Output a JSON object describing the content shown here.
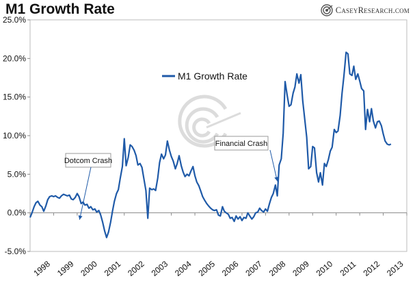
{
  "brand": {
    "name": "CaseyResearch.com",
    "icon": "target-swirl-icon"
  },
  "colors": {
    "series": "#1f5aa8",
    "axis": "#888888",
    "plot_border": "#bbbbbb",
    "annotation_border": "#999999",
    "watermark": "#d9d9d9"
  },
  "chart_data": {
    "type": "line",
    "title": "M1 Growth Rate",
    "xlabel": "",
    "ylabel": "",
    "xlim": [
      1998.0,
      2014.0
    ],
    "ylim": [
      -5,
      25
    ],
    "yticks": [
      -5,
      0,
      5,
      10,
      15,
      20,
      25
    ],
    "ytick_labels": [
      "-5.0%",
      "0.0%",
      "5.0%",
      "10.0%",
      "15.0%",
      "20.0%",
      "25.0%"
    ],
    "xtick_labels": [
      "1998",
      "1999",
      "2000",
      "2001",
      "2002",
      "2003",
      "2004",
      "2005",
      "2006",
      "2007",
      "2008",
      "2009",
      "2010",
      "2011",
      "2012",
      "2013"
    ],
    "grid": false,
    "legend": {
      "position": "upper-center",
      "entries": [
        "M1 Growth Rate"
      ]
    },
    "series": [
      {
        "name": "M1 Growth Rate",
        "points": [
          [
            1998.0,
            -0.6
          ],
          [
            1998.08,
            0.0
          ],
          [
            1998.17,
            0.8
          ],
          [
            1998.25,
            1.3
          ],
          [
            1998.33,
            1.5
          ],
          [
            1998.42,
            1.0
          ],
          [
            1998.5,
            0.8
          ],
          [
            1998.58,
            0.2
          ],
          [
            1998.67,
            0.9
          ],
          [
            1998.75,
            1.7
          ],
          [
            1998.83,
            2.1
          ],
          [
            1998.92,
            2.2
          ],
          [
            1999.0,
            2.1
          ],
          [
            1999.08,
            2.2
          ],
          [
            1999.17,
            2.0
          ],
          [
            1999.25,
            1.9
          ],
          [
            1999.33,
            2.2
          ],
          [
            1999.42,
            2.4
          ],
          [
            1999.5,
            2.3
          ],
          [
            1999.58,
            2.2
          ],
          [
            1999.67,
            2.3
          ],
          [
            1999.75,
            1.8
          ],
          [
            1999.83,
            1.7
          ],
          [
            1999.92,
            2.0
          ],
          [
            2000.0,
            2.5
          ],
          [
            2000.08,
            2.1
          ],
          [
            2000.17,
            1.2
          ],
          [
            2000.25,
            1.4
          ],
          [
            2000.33,
            1.0
          ],
          [
            2000.42,
            1.1
          ],
          [
            2000.5,
            0.6
          ],
          [
            2000.58,
            0.8
          ],
          [
            2000.67,
            0.4
          ],
          [
            2000.75,
            0.5
          ],
          [
            2000.83,
            0.1
          ],
          [
            2000.92,
            0.3
          ],
          [
            2001.0,
            -0.3
          ],
          [
            2001.08,
            -1.2
          ],
          [
            2001.17,
            -2.4
          ],
          [
            2001.25,
            -3.2
          ],
          [
            2001.33,
            -2.5
          ],
          [
            2001.42,
            -1.2
          ],
          [
            2001.5,
            0.2
          ],
          [
            2001.58,
            1.5
          ],
          [
            2001.67,
            2.5
          ],
          [
            2001.75,
            3.0
          ],
          [
            2001.83,
            4.5
          ],
          [
            2001.92,
            6.0
          ],
          [
            2002.0,
            9.6
          ],
          [
            2002.08,
            6.1
          ],
          [
            2002.17,
            7.2
          ],
          [
            2002.25,
            8.8
          ],
          [
            2002.33,
            8.6
          ],
          [
            2002.42,
            8.1
          ],
          [
            2002.5,
            7.4
          ],
          [
            2002.58,
            6.2
          ],
          [
            2002.67,
            6.4
          ],
          [
            2002.75,
            5.9
          ],
          [
            2002.83,
            4.5
          ],
          [
            2002.92,
            2.9
          ],
          [
            2003.0,
            -0.7
          ],
          [
            2003.08,
            3.2
          ],
          [
            2003.17,
            3.0
          ],
          [
            2003.25,
            3.1
          ],
          [
            2003.33,
            2.9
          ],
          [
            2003.42,
            4.5
          ],
          [
            2003.5,
            6.5
          ],
          [
            2003.58,
            7.6
          ],
          [
            2003.67,
            7.0
          ],
          [
            2003.75,
            7.5
          ],
          [
            2003.83,
            9.3
          ],
          [
            2003.92,
            8.1
          ],
          [
            2004.0,
            7.3
          ],
          [
            2004.08,
            6.7
          ],
          [
            2004.17,
            5.7
          ],
          [
            2004.25,
            6.4
          ],
          [
            2004.33,
            7.4
          ],
          [
            2004.42,
            6.1
          ],
          [
            2004.5,
            5.3
          ],
          [
            2004.58,
            4.7
          ],
          [
            2004.67,
            5.0
          ],
          [
            2004.75,
            4.8
          ],
          [
            2004.83,
            5.4
          ],
          [
            2004.92,
            6.0
          ],
          [
            2005.0,
            4.8
          ],
          [
            2005.08,
            4.0
          ],
          [
            2005.17,
            3.5
          ],
          [
            2005.25,
            2.8
          ],
          [
            2005.33,
            2.1
          ],
          [
            2005.42,
            1.6
          ],
          [
            2005.5,
            1.2
          ],
          [
            2005.58,
            0.9
          ],
          [
            2005.67,
            0.6
          ],
          [
            2005.75,
            0.4
          ],
          [
            2005.83,
            0.3
          ],
          [
            2005.92,
            0.4
          ],
          [
            2006.0,
            -0.3
          ],
          [
            2006.08,
            -0.4
          ],
          [
            2006.17,
            0.8
          ],
          [
            2006.25,
            0.2
          ],
          [
            2006.33,
            0.0
          ],
          [
            2006.42,
            -0.2
          ],
          [
            2006.5,
            -0.7
          ],
          [
            2006.58,
            -0.6
          ],
          [
            2006.67,
            -1.1
          ],
          [
            2006.75,
            -0.4
          ],
          [
            2006.83,
            -0.8
          ],
          [
            2006.92,
            -0.5
          ],
          [
            2007.0,
            -1.0
          ],
          [
            2007.08,
            -0.6
          ],
          [
            2007.17,
            -0.7
          ],
          [
            2007.25,
            0.0
          ],
          [
            2007.33,
            -0.4
          ],
          [
            2007.42,
            -0.8
          ],
          [
            2007.5,
            -0.5
          ],
          [
            2007.58,
            0.0
          ],
          [
            2007.67,
            0.1
          ],
          [
            2007.75,
            0.6
          ],
          [
            2007.83,
            0.3
          ],
          [
            2007.92,
            0.1
          ],
          [
            2008.0,
            0.5
          ],
          [
            2008.08,
            0.2
          ],
          [
            2008.17,
            1.2
          ],
          [
            2008.25,
            2.0
          ],
          [
            2008.33,
            2.5
          ],
          [
            2008.42,
            3.6
          ],
          [
            2008.5,
            2.2
          ],
          [
            2008.58,
            6.2
          ],
          [
            2008.67,
            7.0
          ],
          [
            2008.75,
            10.3
          ],
          [
            2008.83,
            17.0
          ],
          [
            2008.92,
            15.2
          ],
          [
            2009.0,
            13.8
          ],
          [
            2009.08,
            14.0
          ],
          [
            2009.17,
            15.5
          ],
          [
            2009.25,
            16.3
          ],
          [
            2009.33,
            18.0
          ],
          [
            2009.42,
            16.8
          ],
          [
            2009.5,
            17.9
          ],
          [
            2009.58,
            14.5
          ],
          [
            2009.67,
            12.0
          ],
          [
            2009.75,
            9.8
          ],
          [
            2009.83,
            5.7
          ],
          [
            2009.92,
            6.0
          ],
          [
            2010.0,
            8.6
          ],
          [
            2010.08,
            8.4
          ],
          [
            2010.17,
            5.2
          ],
          [
            2010.25,
            4.0
          ],
          [
            2010.33,
            5.2
          ],
          [
            2010.42,
            3.6
          ],
          [
            2010.5,
            6.4
          ],
          [
            2010.58,
            6.0
          ],
          [
            2010.67,
            6.9
          ],
          [
            2010.75,
            8.0
          ],
          [
            2010.83,
            8.5
          ],
          [
            2010.92,
            10.8
          ],
          [
            2011.0,
            10.4
          ],
          [
            2011.08,
            10.6
          ],
          [
            2011.17,
            12.6
          ],
          [
            2011.25,
            15.5
          ],
          [
            2011.33,
            17.8
          ],
          [
            2011.42,
            20.8
          ],
          [
            2011.5,
            20.6
          ],
          [
            2011.58,
            18.0
          ],
          [
            2011.67,
            17.8
          ],
          [
            2011.75,
            19.0
          ],
          [
            2011.83,
            17.3
          ],
          [
            2011.92,
            18.0
          ],
          [
            2012.0,
            17.1
          ],
          [
            2012.08,
            16.1
          ],
          [
            2012.17,
            15.8
          ],
          [
            2012.25,
            10.8
          ],
          [
            2012.33,
            13.4
          ],
          [
            2012.42,
            11.8
          ],
          [
            2012.5,
            13.5
          ],
          [
            2012.58,
            11.9
          ],
          [
            2012.67,
            11.0
          ],
          [
            2012.75,
            11.8
          ],
          [
            2012.83,
            11.9
          ],
          [
            2012.92,
            11.3
          ],
          [
            2013.0,
            10.2
          ],
          [
            2013.08,
            9.3
          ],
          [
            2013.17,
            8.9
          ],
          [
            2013.25,
            8.8
          ],
          [
            2013.33,
            8.9
          ]
        ]
      }
    ],
    "annotations": [
      {
        "text": "Dotcom Crash",
        "arrow_to": [
          2000.1,
          -0.9
        ]
      },
      {
        "text": "Financial Crash",
        "arrow_to": [
          2008.5,
          4.1
        ]
      }
    ]
  }
}
